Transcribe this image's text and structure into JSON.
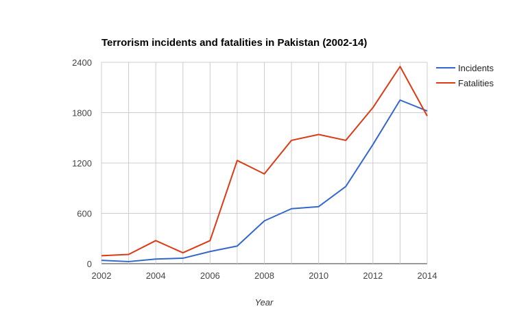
{
  "chart_data": {
    "type": "line",
    "title": "Terrorism incidents and fatalities in Pakistan (2002-14)",
    "xlabel": "Year",
    "ylabel": "",
    "x": [
      2002,
      2003,
      2004,
      2005,
      2006,
      2007,
      2008,
      2009,
      2010,
      2011,
      2012,
      2013,
      2014
    ],
    "xlim": [
      2002,
      2014
    ],
    "ylim": [
      0,
      2400
    ],
    "xticks": [
      "2002",
      "2004",
      "2006",
      "2008",
      "2010",
      "2012",
      "2014"
    ],
    "yticks": [
      "0",
      "600",
      "1200",
      "1800",
      "2400"
    ],
    "grid": true,
    "legend_position": "right-top",
    "series": [
      {
        "name": "Incidents",
        "color": "#3366cc",
        "values": [
          40,
          25,
          55,
          65,
          145,
          210,
          510,
          655,
          680,
          920,
          1420,
          1950,
          1820
        ]
      },
      {
        "name": "Fatalities",
        "color": "#dc3912",
        "values": [
          95,
          110,
          275,
          130,
          275,
          1230,
          1070,
          1470,
          1540,
          1470,
          1860,
          2350,
          1760
        ]
      }
    ]
  }
}
